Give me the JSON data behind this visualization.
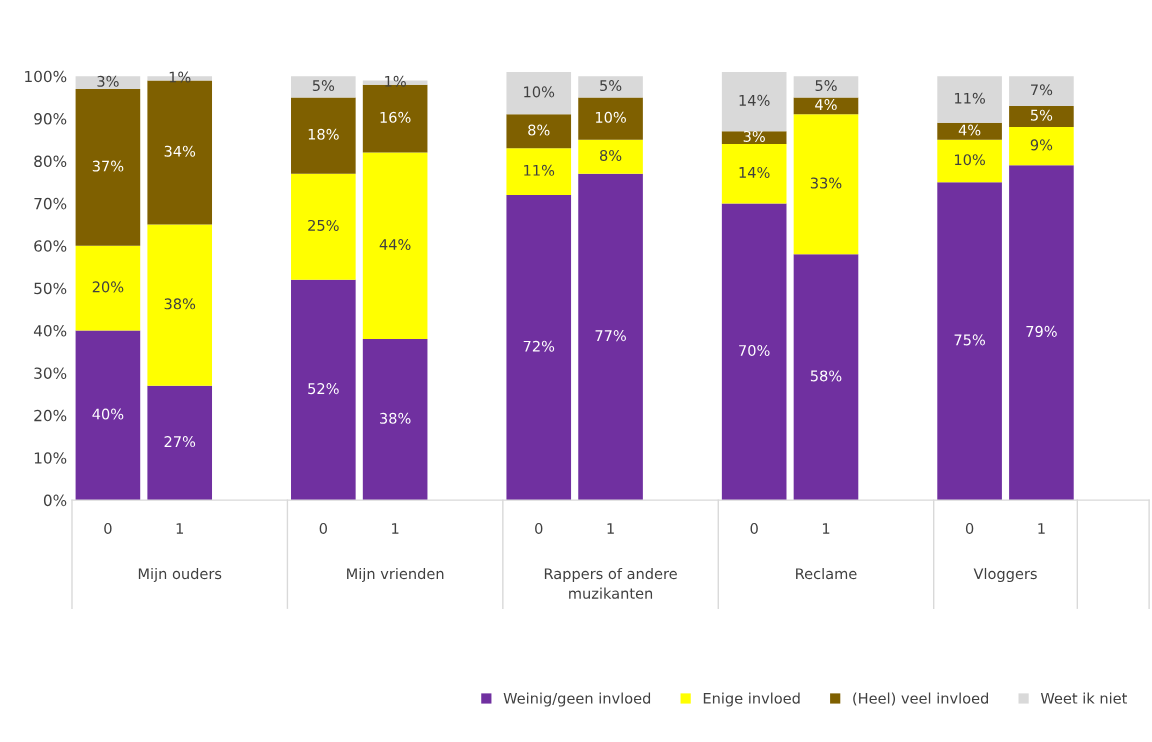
{
  "chart_data": {
    "type": "bar",
    "stacked": true,
    "categories": [
      "0",
      "1",
      null,
      "0",
      "1",
      null,
      "0",
      "1",
      null,
      "0",
      "1",
      null,
      "0",
      "1",
      null
    ],
    "annotations": [
      "Mijn ouders",
      "Mijn vrienden",
      "Rappers of andere muzikanten",
      "Reclame",
      "Vloggers"
    ],
    "series": [
      {
        "name": "Weinig/geen invloed",
        "color": "#7030a0",
        "values": [
          40,
          27,
          null,
          52,
          38,
          null,
          72,
          77,
          null,
          70,
          58,
          null,
          75,
          79,
          null
        ],
        "value_labels": [
          "40%",
          "27%",
          null,
          "52%",
          "38%",
          null,
          "72%",
          "77%",
          null,
          "70%",
          "58%",
          null,
          "75%",
          "79%",
          null
        ]
      },
      {
        "name": "Enige invloed",
        "color": "#ffff00",
        "values": [
          20,
          38,
          null,
          25,
          44,
          null,
          11,
          8,
          null,
          14,
          33,
          null,
          10,
          9,
          null
        ],
        "value_labels": [
          "20%",
          "38%",
          null,
          "25%",
          "44%",
          null,
          "11%",
          "8%",
          null,
          "14%",
          "33%",
          null,
          "10%",
          "9%",
          null
        ]
      },
      {
        "name": "(Heel) veel invloed",
        "color": "#7f6000",
        "values": [
          37,
          34,
          null,
          18,
          16,
          null,
          8,
          10,
          null,
          3,
          4,
          null,
          4,
          5,
          null
        ],
        "value_labels": [
          "37%",
          "34%",
          null,
          "18%",
          "16%",
          null,
          "8%",
          "10%",
          null,
          "3%",
          "4%",
          null,
          "4%",
          "5%",
          null
        ]
      },
      {
        "name": "Weet ik niet",
        "color": "#d9d9d9",
        "values": [
          3,
          1,
          null,
          5,
          1,
          null,
          10,
          5,
          null,
          14,
          5,
          null,
          11,
          7,
          null
        ],
        "value_labels": [
          "3%",
          "1%",
          null,
          "5%",
          "1%",
          null,
          "10%",
          "5%",
          null,
          "14%",
          "5%",
          null,
          "11%",
          "7%",
          null
        ]
      }
    ],
    "ylim": [
      0,
      101
    ],
    "yticks": [
      {
        "value": 0,
        "label": "0%"
      },
      {
        "value": 10,
        "label": "10%"
      },
      {
        "value": 20,
        "label": "20%"
      },
      {
        "value": 30,
        "label": "30%"
      },
      {
        "value": 40,
        "label": "40%"
      },
      {
        "value": 50,
        "label": "50%"
      },
      {
        "value": 60,
        "label": "60%"
      },
      {
        "value": 70,
        "label": "70%"
      },
      {
        "value": 80,
        "label": "80%"
      },
      {
        "value": 90,
        "label": "90%"
      },
      {
        "value": 100,
        "label": "100%"
      }
    ],
    "grid": false,
    "legend": "bottom right"
  }
}
